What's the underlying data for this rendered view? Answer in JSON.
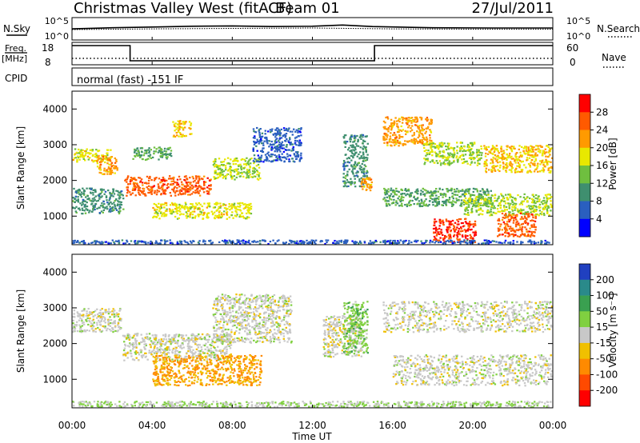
{
  "header": {
    "title": "Christmas Valley West (fitACF)",
    "beam": "Beam 01",
    "date": "27/Jul/2011"
  },
  "strip_labels": {
    "nsky": "N.Sky",
    "nsky_ticks": [
      "10^5",
      "10^0"
    ],
    "nsearch": "N.Search",
    "nsearch_ticks": [
      "10^5",
      "10^0"
    ],
    "freq": "Freq.",
    "freq_unit": "[MHz]",
    "freq_ticks": [
      "18",
      "8"
    ],
    "nave": "Nave",
    "nave_ticks": [
      "60",
      "0"
    ],
    "cpid": "CPID",
    "cpid_text": "normal (fast) -151 IF"
  },
  "panels": {
    "ylabel": "Slant Range [km]",
    "yticks": [
      "1000",
      "2000",
      "3000",
      "4000"
    ],
    "xlabel": "Time UT",
    "xticks": [
      "00:00",
      "04:00",
      "08:00",
      "12:00",
      "16:00",
      "20:00",
      "00:00"
    ]
  },
  "colorbars": {
    "power": {
      "label": "Power [dB]",
      "ticks": [
        "4",
        "8",
        "12",
        "16",
        "20",
        "24",
        "28"
      ],
      "colors": [
        "#0000ff",
        "#2a5fbf",
        "#3f8f6f",
        "#6fbf3f",
        "#e8e800",
        "#ff9a00",
        "#ff5a00",
        "#ff0000"
      ]
    },
    "velocity": {
      "label": "Velocity [m s⁻¹]",
      "ticks": [
        "200",
        "100",
        "50",
        "15",
        "-15",
        "-50",
        "-100",
        "-200"
      ],
      "colors": [
        "#2040c0",
        "#2a8a8a",
        "#3aa050",
        "#80d040",
        "#c8c8c8",
        "#f0c000",
        "#ff8a00",
        "#ff4a00",
        "#ff0000"
      ]
    }
  },
  "chart_data": [
    {
      "type": "line",
      "title": "N.Sky / N.Search",
      "x_range_hours": [
        0,
        24
      ],
      "y_scale": "log",
      "ylim": [
        1,
        100000
      ],
      "series": [
        {
          "name": "N.Sky",
          "x": [
            0,
            2,
            4,
            6,
            8,
            10,
            12,
            13.5,
            15,
            18,
            21,
            24
          ],
          "y": [
            300,
            600,
            900,
            1500,
            1800,
            1200,
            1500,
            3000,
            1200,
            600,
            500,
            500
          ]
        },
        {
          "name": "N.Search",
          "x": [
            0,
            4,
            8,
            12,
            16,
            20,
            24
          ],
          "y": [
            200,
            300,
            400,
            500,
            300,
            250,
            250
          ]
        }
      ]
    },
    {
      "type": "line",
      "title": "Freq. [MHz] / Nave",
      "x_range_hours": [
        0,
        24
      ],
      "series": [
        {
          "name": "Freq. [MHz]",
          "x": [
            0,
            2.9,
            2.9,
            15.1,
            15.1,
            24
          ],
          "y": [
            18,
            18,
            8.5,
            8.5,
            18,
            18
          ]
        },
        {
          "name": "Nave",
          "x": [
            0,
            24
          ],
          "y": [
            20,
            20
          ]
        }
      ]
    },
    {
      "type": "heatmap",
      "title": "Power [dB]",
      "xlabel": "Time UT",
      "ylabel": "Slant Range [km]",
      "x_range_hours": [
        0,
        24
      ],
      "ylim": [
        200,
        4500
      ],
      "clim": [
        0,
        32
      ],
      "regions": [
        {
          "x": [
            0,
            2.0
          ],
          "y": [
            2500,
            2900
          ],
          "value": 18
        },
        {
          "x": [
            1.2,
            2.3
          ],
          "y": [
            2150,
            2700
          ],
          "value": 22
        },
        {
          "x": [
            0,
            2.6
          ],
          "y": [
            1050,
            1800
          ],
          "value": 10
        },
        {
          "x": [
            2.6,
            7.0
          ],
          "y": [
            1550,
            2150
          ],
          "value": 26
        },
        {
          "x": [
            3.0,
            5.0
          ],
          "y": [
            2550,
            2950
          ],
          "value": 12
        },
        {
          "x": [
            4.0,
            9.0
          ],
          "y": [
            900,
            1400
          ],
          "value": 18
        },
        {
          "x": [
            5.0,
            6.0
          ],
          "y": [
            3200,
            3700
          ],
          "value": 20
        },
        {
          "x": [
            7.0,
            9.5
          ],
          "y": [
            2000,
            2650
          ],
          "value": 16
        },
        {
          "x": [
            9.0,
            11.5
          ],
          "y": [
            2500,
            3500
          ],
          "value": 6
        },
        {
          "x": [
            13.5,
            14.8
          ],
          "y": [
            1800,
            3300
          ],
          "value": 10
        },
        {
          "x": [
            14.4,
            15.0
          ],
          "y": [
            1650,
            2100
          ],
          "value": 22
        },
        {
          "x": [
            15.5,
            18.0
          ],
          "y": [
            2950,
            3800
          ],
          "value": 22
        },
        {
          "x": [
            17.5,
            20.5
          ],
          "y": [
            2400,
            3100
          ],
          "value": 16
        },
        {
          "x": [
            20.5,
            24.0
          ],
          "y": [
            2200,
            3000
          ],
          "value": 20
        },
        {
          "x": [
            15.5,
            21.0
          ],
          "y": [
            1250,
            1800
          ],
          "value": 12
        },
        {
          "x": [
            19.5,
            24.0
          ],
          "y": [
            1000,
            1650
          ],
          "value": 16
        },
        {
          "x": [
            18.0,
            20.2
          ],
          "y": [
            250,
            950
          ],
          "value": 28
        },
        {
          "x": [
            21.2,
            23.2
          ],
          "y": [
            400,
            1100
          ],
          "value": 26
        },
        {
          "x": [
            0,
            24
          ],
          "y": [
            200,
            350
          ],
          "value": 6
        }
      ]
    },
    {
      "type": "heatmap",
      "title": "Velocity [m s⁻¹]",
      "xlabel": "Time UT",
      "ylabel": "Slant Range [km]",
      "x_range_hours": [
        0,
        24
      ],
      "ylim": [
        200,
        4500
      ],
      "clim": [
        -200,
        200
      ],
      "regions": [
        {
          "x": [
            0,
            2.5
          ],
          "y": [
            2300,
            3000
          ],
          "value": 0
        },
        {
          "x": [
            2.5,
            8.0
          ],
          "y": [
            1500,
            2300
          ],
          "value": 0
        },
        {
          "x": [
            4.0,
            9.5
          ],
          "y": [
            800,
            1700
          ],
          "value": -70
        },
        {
          "x": [
            7.0,
            11.0
          ],
          "y": [
            2000,
            3400
          ],
          "value": 0
        },
        {
          "x": [
            12.5,
            14.5
          ],
          "y": [
            1600,
            2800
          ],
          "value": 0
        },
        {
          "x": [
            13.5,
            14.8
          ],
          "y": [
            1700,
            3200
          ],
          "value": 45
        },
        {
          "x": [
            15.5,
            24.0
          ],
          "y": [
            2300,
            3200
          ],
          "value": 0
        },
        {
          "x": [
            16.0,
            24.0
          ],
          "y": [
            800,
            1700
          ],
          "value": 0
        },
        {
          "x": [
            0,
            24
          ],
          "y": [
            200,
            400
          ],
          "value": 25
        }
      ]
    }
  ]
}
